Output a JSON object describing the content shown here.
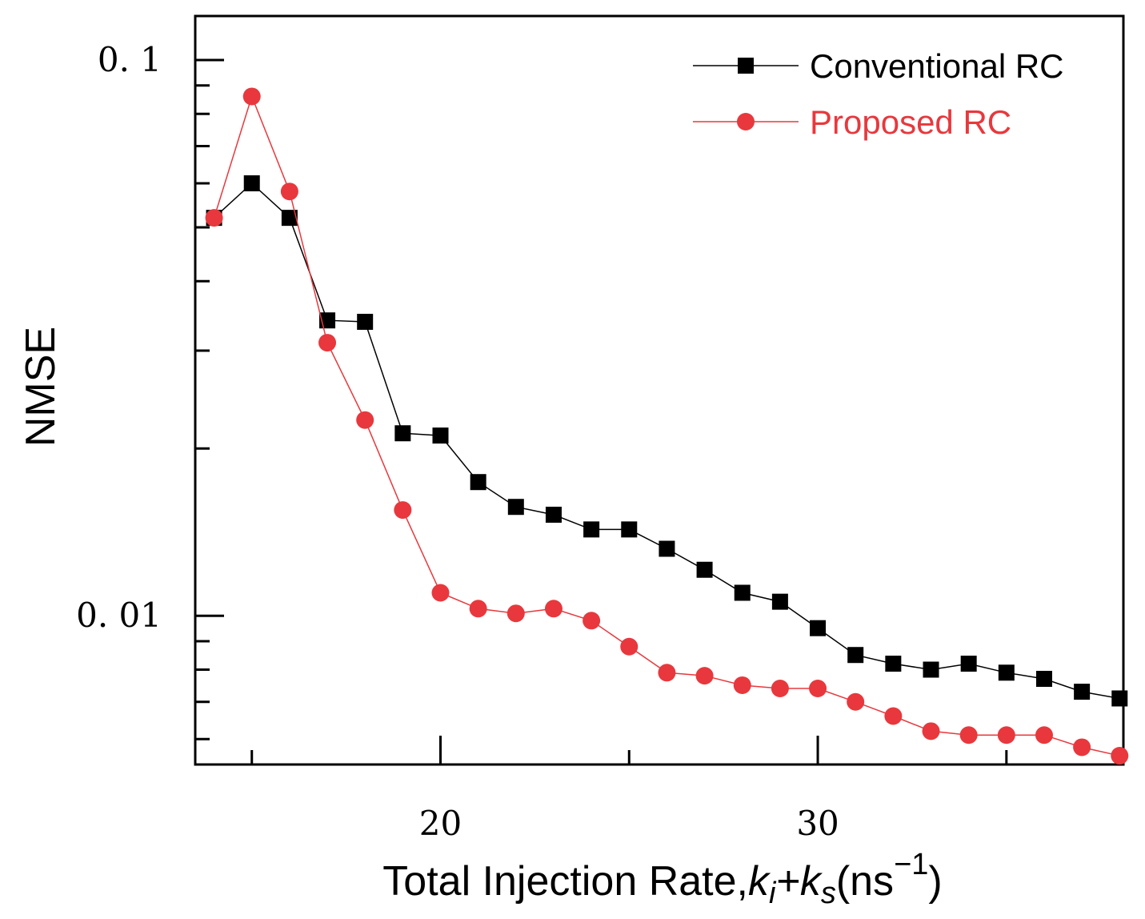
{
  "chart_data": {
    "type": "line",
    "title": "",
    "xlabel": {
      "main": "Total Injection Rate,",
      "k1": "k",
      "sub1": "i",
      "plus": "+",
      "k2": "k",
      "sub2": "s",
      "unit_open": "(ns",
      "unit_exp": "−1",
      "unit_close": ")"
    },
    "ylabel": "NMSE",
    "yscale": "log",
    "xlim": [
      13.5,
      38.1
    ],
    "ylim": [
      0.0054,
      0.12
    ],
    "x_ticks": [
      {
        "value": 20,
        "label": "20"
      },
      {
        "value": 30,
        "label": "30"
      }
    ],
    "y_ticks": [
      {
        "value": 0.1,
        "label": "0. 1"
      },
      {
        "value": 0.01,
        "label": "0. 01"
      }
    ],
    "y_minor_ticks": [
      0.09,
      0.08,
      0.07,
      0.06,
      0.05,
      0.04,
      0.03,
      0.02,
      0.009,
      0.008,
      0.007,
      0.006
    ],
    "x_minor_ticks": [
      15,
      25,
      35
    ],
    "legend_position": "top-right",
    "x": [
      14,
      15,
      16,
      17,
      18,
      19,
      20,
      21,
      22,
      23,
      24,
      25,
      26,
      27,
      28,
      29,
      30,
      31,
      32,
      33,
      34,
      35,
      36,
      37,
      38
    ],
    "series": [
      {
        "name": "Conventional RC",
        "color": "#000000",
        "marker": "square",
        "values": [
          0.052,
          0.06,
          0.052,
          0.034,
          0.0338,
          0.0213,
          0.0211,
          0.0174,
          0.0157,
          0.0152,
          0.0143,
          0.0143,
          0.0132,
          0.0121,
          0.011,
          0.0106,
          0.0095,
          0.0085,
          0.0082,
          0.008,
          0.0082,
          0.0079,
          0.0077,
          0.0073,
          0.0071
        ]
      },
      {
        "name": "Proposed RC",
        "color": "#e8383d",
        "marker": "circle",
        "values": [
          0.052,
          0.086,
          0.058,
          0.031,
          0.0225,
          0.0155,
          0.011,
          0.0103,
          0.0101,
          0.0103,
          0.0098,
          0.0088,
          0.0079,
          0.0078,
          0.0075,
          0.0074,
          0.0074,
          0.007,
          0.0066,
          0.0062,
          0.0061,
          0.0061,
          0.0061,
          0.0058,
          0.0056
        ]
      }
    ]
  }
}
